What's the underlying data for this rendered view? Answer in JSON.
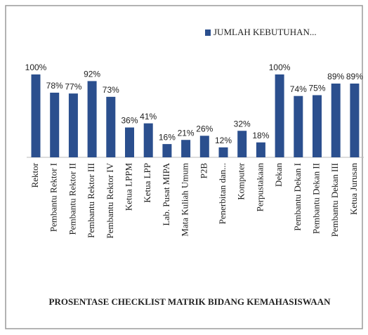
{
  "chart_data": {
    "type": "bar",
    "title": "PROSENTASE CHECKLIST MATRIK BIDANG KEMAHASISWAAN",
    "categories": [
      "Rektor",
      "Pembantu Rektor I",
      "Pembantu Rektor II",
      "Pembantu Rektor III",
      "Pembantu Rektor IV",
      "Ketua LPPM",
      "Ketua LPP",
      "Lab. Pusat MIPA",
      "Mata Kuliah Umum",
      "P2B",
      "Penerbitan dan...",
      "Komputer",
      "Perpustakaan",
      "Dekan",
      "Pembantu Dekan I",
      "Pembantu Dekan II",
      "Pembantu Dekan III",
      "Ketua Jurusan"
    ],
    "series": [
      {
        "name": "JUMLAH KEBUTUHAN...",
        "color": "#2b4f8e",
        "values": [
          100,
          78,
          77,
          92,
          73,
          36,
          41,
          16,
          21,
          26,
          12,
          32,
          18,
          100,
          74,
          75,
          89,
          89
        ],
        "value_labels": [
          "100%",
          "78%",
          "77%",
          "92%",
          "73%",
          "36%",
          "41%",
          "16%",
          "21%",
          "26%",
          "12%",
          "32%",
          "18%",
          "100%",
          "74%",
          "75%",
          "89%",
          "89%"
        ]
      }
    ],
    "legend": "top-right"
  }
}
